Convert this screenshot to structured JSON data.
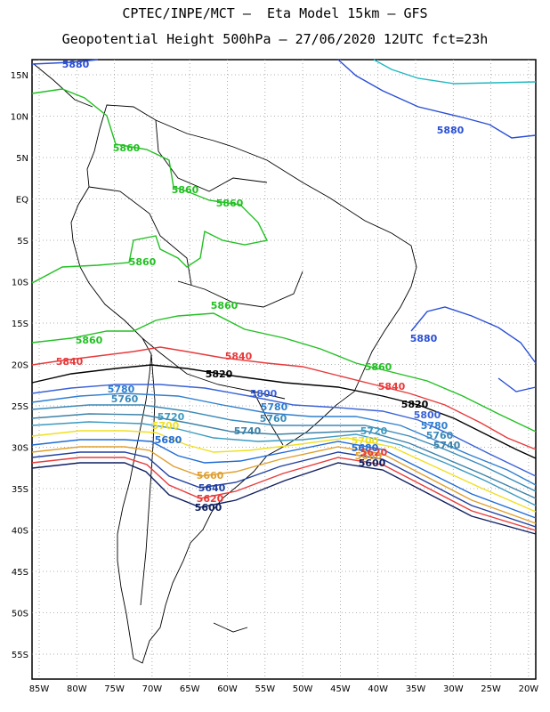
{
  "title_line1": "CPTEC/INPE/MCT –  Eta Model 15km – GFS",
  "title_line2": "Geopotential Height 500hPa – 27/06/2020 12UTC fct=23h",
  "lat_labels": [
    "15N",
    "10N",
    "5N",
    "EQ",
    "5S",
    "10S",
    "15S",
    "20S",
    "25S",
    "30S",
    "35S",
    "40S",
    "45S",
    "50S",
    "55S"
  ],
  "lon_labels": [
    "85W",
    "80W",
    "75W",
    "70W",
    "65W",
    "60W",
    "55W",
    "50W",
    "45W",
    "40W",
    "35W",
    "30W",
    "25W",
    "20W"
  ],
  "contours": [
    {
      "value": "5880",
      "color": "#2a4fd6"
    },
    {
      "value": "5860",
      "color": "#22c022"
    },
    {
      "value": "5840",
      "color": "#e8393a"
    },
    {
      "value": "5820",
      "color": "#000000"
    },
    {
      "value": "5800",
      "color": "#3a62d8"
    },
    {
      "value": "5780",
      "color": "#2f7fd0"
    },
    {
      "value": "5760",
      "color": "#3a8ab8"
    },
    {
      "value": "5740",
      "color": "#3c82a8"
    },
    {
      "value": "5720",
      "color": "#3c9ac0"
    },
    {
      "value": "5700",
      "color": "#f0e020"
    },
    {
      "value": "5680",
      "color": "#1e6bd6"
    },
    {
      "value": "5660",
      "color": "#e0a030"
    },
    {
      "value": "5640",
      "color": "#1f3fa0"
    },
    {
      "value": "5620",
      "color": "#e83b3b"
    },
    {
      "value": "5600",
      "color": "#0f1f60"
    }
  ],
  "colors": {
    "outer_5880": "#20b8c0",
    "grid": "#999999"
  }
}
